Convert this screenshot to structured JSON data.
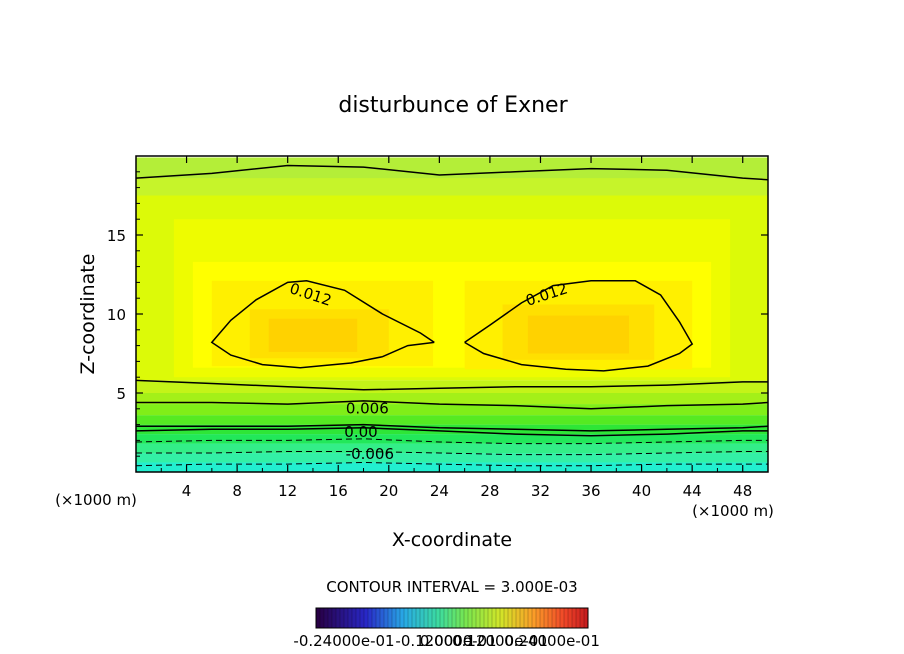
{
  "chart_data": {
    "type": "heatmap",
    "title": "disturbunce of Exner",
    "xlabel": "X-coordinate",
    "ylabel": "Z-coordinate",
    "x_unit": "(×1000 m)",
    "y_unit": "(×1000 m)",
    "xlim": [
      0,
      50
    ],
    "ylim": [
      0,
      20
    ],
    "x_ticks": [
      "4",
      "8",
      "12",
      "16",
      "20",
      "24",
      "28",
      "32",
      "36",
      "40",
      "44",
      "48"
    ],
    "y_ticks": [
      "5",
      "10",
      "15"
    ],
    "x_tick_values": [
      4,
      8,
      12,
      16,
      20,
      24,
      28,
      32,
      36,
      40,
      44,
      48
    ],
    "y_tick_values": [
      5,
      10,
      15
    ],
    "contour_interval_label": "CONTOUR INTERVAL = 3.000E-03",
    "contour_labels": [
      {
        "text": "0.012",
        "x": 13.8,
        "z": 11.2
      },
      {
        "text": "0.012",
        "x": 32.5,
        "z": 11.2
      },
      {
        "text": "0.006",
        "x": 18.3,
        "z": 4.0
      },
      {
        "text": "0.00",
        "x": 17.8,
        "z": 2.5
      },
      {
        "text": "-0.006",
        "x": 18.5,
        "z": 1.1
      }
    ],
    "colorbar": {
      "min_label": "-0.24000e-01",
      "max_label": "0.24000e-01",
      "overlap_labels": [
        "-0.12000e-01",
        "0.0000",
        "0.12000e-01"
      ]
    },
    "cells": [
      {
        "x": [
          0,
          50
        ],
        "z": [
          0,
          0.6
        ],
        "color": "#22efd0"
      },
      {
        "x": [
          0,
          50
        ],
        "z": [
          0.6,
          1.2
        ],
        "color": "#33f0a6"
      },
      {
        "x": [
          0,
          50
        ],
        "z": [
          1.2,
          1.8
        ],
        "color": "#33ee88"
      },
      {
        "x": [
          0,
          50
        ],
        "z": [
          1.8,
          2.4
        ],
        "color": "#22e85a"
      },
      {
        "x": [
          0,
          50
        ],
        "z": [
          2.4,
          3.0
        ],
        "color": "#2ee637"
      },
      {
        "x": [
          0,
          50
        ],
        "z": [
          3.0,
          3.6
        ],
        "color": "#55ea22"
      },
      {
        "x": [
          0,
          50
        ],
        "z": [
          3.6,
          4.3
        ],
        "color": "#80ee18"
      },
      {
        "x": [
          0,
          50
        ],
        "z": [
          4.3,
          5.0
        ],
        "color": "#a4f018"
      },
      {
        "x": [
          0,
          50
        ],
        "z": [
          5.0,
          5.8
        ],
        "color": "#c4f418"
      },
      {
        "x": [
          0,
          50
        ],
        "z": [
          5.8,
          19.9
        ],
        "color": "#dcfa08"
      },
      {
        "x": [
          0,
          50
        ],
        "z": [
          17.5,
          19.9
        ],
        "color": "#c6f42a"
      },
      {
        "x": [
          0,
          50
        ],
        "z": [
          18.6,
          19.9
        ],
        "color": "#b4ee38"
      },
      {
        "x": [
          3,
          47
        ],
        "z": [
          6.0,
          16.0
        ],
        "color": "#eefc00"
      },
      {
        "x": [
          4.5,
          45.5
        ],
        "z": [
          6.6,
          13.3
        ],
        "color": "#ffff00"
      },
      {
        "x": [
          6.0,
          23.5
        ],
        "z": [
          6.7,
          12.1
        ],
        "color": "#fff000"
      },
      {
        "x": [
          26.0,
          44.0
        ],
        "z": [
          6.5,
          12.1
        ],
        "color": "#fff000"
      },
      {
        "x": [
          9.0,
          20.0
        ],
        "z": [
          7.2,
          10.3
        ],
        "color": "#ffe000"
      },
      {
        "x": [
          29.0,
          41.0
        ],
        "z": [
          7.1,
          10.6
        ],
        "color": "#ffe000"
      },
      {
        "x": [
          10.5,
          17.5
        ],
        "z": [
          7.6,
          9.7
        ],
        "color": "#ffd200"
      },
      {
        "x": [
          31.0,
          39.0
        ],
        "z": [
          7.5,
          9.9
        ],
        "color": "#ffd200"
      }
    ],
    "contours": [
      {
        "style": "solid",
        "points": [
          [
            0,
            18.6
          ],
          [
            6,
            18.9
          ],
          [
            12,
            19.4
          ],
          [
            18,
            19.3
          ],
          [
            24,
            18.8
          ],
          [
            30,
            19.0
          ],
          [
            36,
            19.2
          ],
          [
            42,
            19.1
          ],
          [
            48,
            18.6
          ],
          [
            50,
            18.5
          ]
        ]
      },
      {
        "style": "solid",
        "points": [
          [
            0,
            5.8
          ],
          [
            6,
            5.6
          ],
          [
            12,
            5.4
          ],
          [
            18,
            5.2
          ],
          [
            24,
            5.3
          ],
          [
            30,
            5.4
          ],
          [
            36,
            5.4
          ],
          [
            42,
            5.5
          ],
          [
            48,
            5.7
          ],
          [
            50,
            5.7
          ]
        ]
      },
      {
        "style": "solid",
        "points": [
          [
            0,
            4.4
          ],
          [
            6,
            4.4
          ],
          [
            12,
            4.3
          ],
          [
            18,
            4.5
          ],
          [
            24,
            4.3
          ],
          [
            30,
            4.2
          ],
          [
            36,
            4.0
          ],
          [
            42,
            4.2
          ],
          [
            48,
            4.3
          ],
          [
            50,
            4.4
          ]
        ]
      },
      {
        "style": "solid",
        "points": [
          [
            0,
            2.9
          ],
          [
            6,
            2.9
          ],
          [
            12,
            2.9
          ],
          [
            18,
            3.0
          ],
          [
            24,
            2.8
          ],
          [
            30,
            2.7
          ],
          [
            36,
            2.6
          ],
          [
            42,
            2.7
          ],
          [
            48,
            2.8
          ],
          [
            50,
            2.9
          ]
        ]
      },
      {
        "style": "solid",
        "points": [
          [
            0,
            2.6
          ],
          [
            6,
            2.7
          ],
          [
            12,
            2.7
          ],
          [
            18,
            2.8
          ],
          [
            24,
            2.6
          ],
          [
            30,
            2.4
          ],
          [
            36,
            2.3
          ],
          [
            42,
            2.4
          ],
          [
            48,
            2.6
          ],
          [
            50,
            2.6
          ]
        ]
      },
      {
        "style": "dashed",
        "points": [
          [
            0,
            1.9
          ],
          [
            6,
            2.0
          ],
          [
            12,
            2.0
          ],
          [
            18,
            2.1
          ],
          [
            24,
            1.9
          ],
          [
            30,
            1.8
          ],
          [
            36,
            1.8
          ],
          [
            42,
            1.9
          ],
          [
            48,
            2.0
          ],
          [
            50,
            2.0
          ]
        ]
      },
      {
        "style": "dashed",
        "points": [
          [
            0,
            1.2
          ],
          [
            6,
            1.2
          ],
          [
            12,
            1.3
          ],
          [
            18,
            1.3
          ],
          [
            24,
            1.2
          ],
          [
            30,
            1.1
          ],
          [
            36,
            1.1
          ],
          [
            42,
            1.2
          ],
          [
            48,
            1.3
          ],
          [
            50,
            1.3
          ]
        ]
      },
      {
        "style": "dashed",
        "points": [
          [
            0,
            0.4
          ],
          [
            6,
            0.5
          ],
          [
            12,
            0.5
          ],
          [
            18,
            0.6
          ],
          [
            24,
            0.5
          ],
          [
            30,
            0.4
          ],
          [
            36,
            0.4
          ],
          [
            42,
            0.5
          ],
          [
            48,
            0.5
          ],
          [
            50,
            0.5
          ]
        ]
      },
      {
        "style": "solid",
        "points": [
          [
            23.6,
            8.2
          ],
          [
            21.5,
            8.0
          ],
          [
            19.5,
            7.3
          ],
          [
            17.0,
            6.9
          ],
          [
            13.0,
            6.6
          ],
          [
            10.0,
            6.8
          ],
          [
            7.5,
            7.4
          ],
          [
            6.0,
            8.2
          ],
          [
            7.5,
            9.6
          ],
          [
            9.5,
            10.9
          ],
          [
            12.0,
            12.0
          ],
          [
            13.5,
            12.1
          ],
          [
            16.5,
            11.5
          ],
          [
            19.5,
            10.0
          ],
          [
            22.5,
            8.8
          ],
          [
            23.6,
            8.2
          ]
        ]
      },
      {
        "style": "solid",
        "points": [
          [
            26.0,
            8.2
          ],
          [
            27.5,
            7.5
          ],
          [
            30.5,
            6.8
          ],
          [
            34.0,
            6.5
          ],
          [
            37.0,
            6.4
          ],
          [
            40.5,
            6.7
          ],
          [
            43.0,
            7.5
          ],
          [
            44.0,
            8.1
          ],
          [
            43.0,
            9.5
          ],
          [
            41.5,
            11.2
          ],
          [
            39.5,
            12.1
          ],
          [
            36.0,
            12.1
          ],
          [
            33.0,
            11.8
          ],
          [
            30.5,
            10.7
          ],
          [
            28.0,
            9.3
          ],
          [
            26.0,
            8.2
          ]
        ]
      }
    ]
  }
}
